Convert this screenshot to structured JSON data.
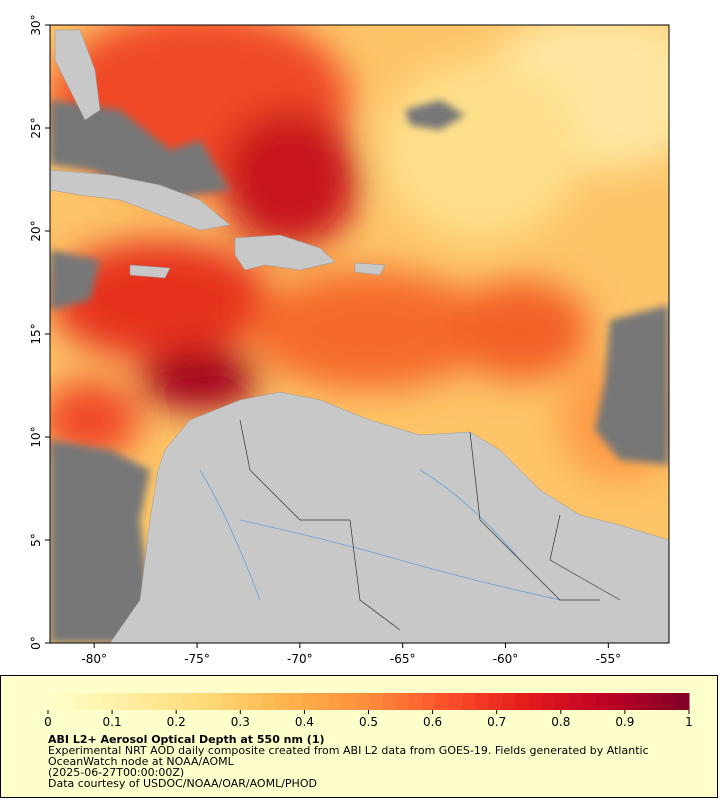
{
  "map": {
    "xlim": [
      -82.15,
      -52.05
    ],
    "ylim": [
      0,
      30
    ],
    "xticks": [
      {
        "value": -80,
        "label": "-80°"
      },
      {
        "value": -75,
        "label": "-75°"
      },
      {
        "value": -70,
        "label": "-70°"
      },
      {
        "value": -65,
        "label": "-65°"
      },
      {
        "value": -60,
        "label": "-60°"
      },
      {
        "value": -55,
        "label": "-55°"
      }
    ],
    "yticks": [
      {
        "value": 0,
        "label": "0°"
      },
      {
        "value": 5,
        "label": "5°"
      },
      {
        "value": 10,
        "label": "10°"
      },
      {
        "value": 15,
        "label": "15°"
      },
      {
        "value": 20,
        "label": "20°"
      },
      {
        "value": 25,
        "label": "25°"
      },
      {
        "value": 30,
        "label": "30°"
      }
    ]
  },
  "colorbar": {
    "range": [
      0,
      1
    ],
    "ticks": [
      0,
      0.1,
      0.2,
      0.3,
      0.4,
      0.5,
      0.6,
      0.7,
      0.8,
      0.9,
      1
    ],
    "colors": [
      "#ffffcc",
      "#ffeda0",
      "#fed976",
      "#feb24c",
      "#fd8d3c",
      "#fc4e2a",
      "#e31a1c",
      "#bd0026",
      "#800026"
    ]
  },
  "caption": {
    "title": "ABI L2+ Aerosol Optical Depth at 550 nm (1)",
    "lines": [
      "Experimental NRT AOD daily composite created from ABI L2 data from GOES-19. Fields generated by Atlantic OceanWatch node at NOAA/AOML",
      "(2025-06-27T00:00:00Z)",
      "Data courtesy of USDOC/NOAA/OAR/AOML/PHOD"
    ]
  }
}
